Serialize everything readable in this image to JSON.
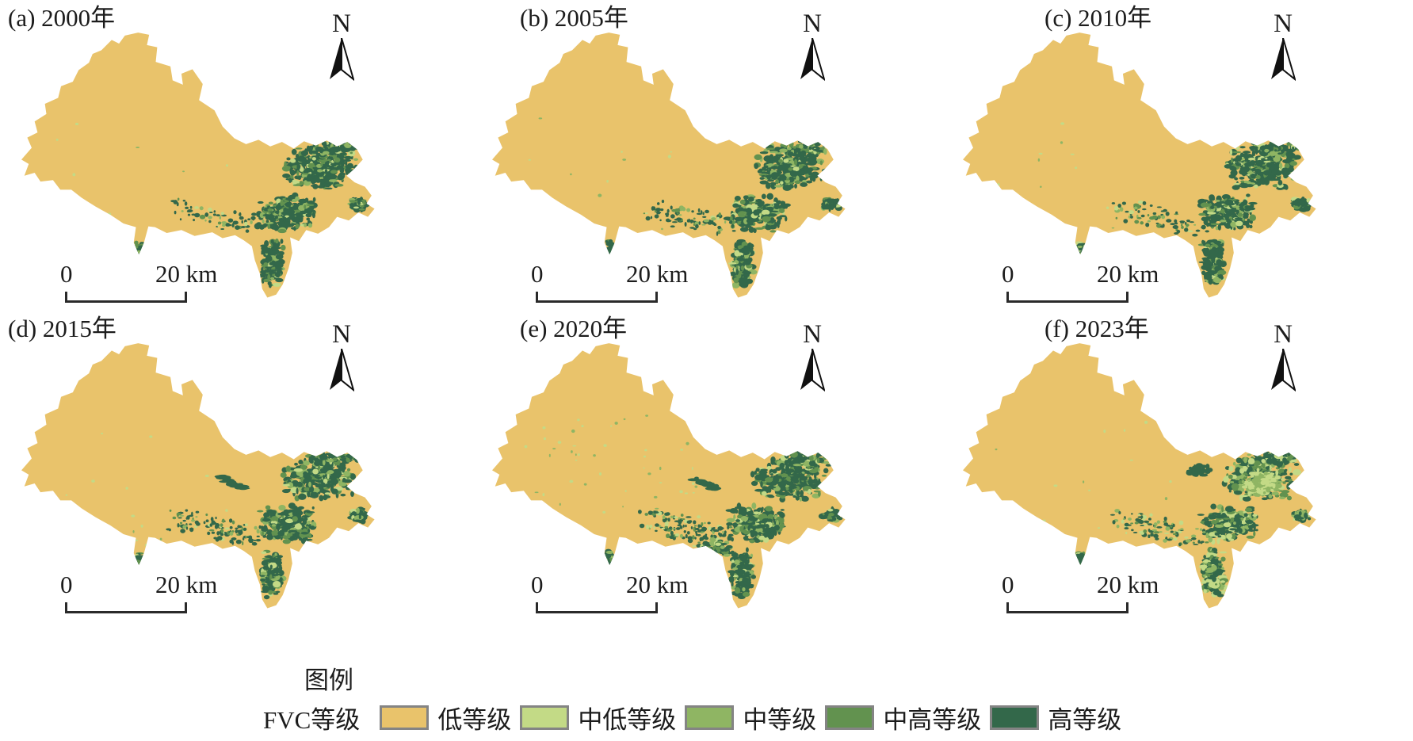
{
  "figure": {
    "description": "FVC grade maps of a county region for six years",
    "background": "#ffffff"
  },
  "panels": [
    {
      "id": "a",
      "title": "(a) 2000年",
      "year": "2000"
    },
    {
      "id": "b",
      "title": "(b) 2005年",
      "year": "2005"
    },
    {
      "id": "c",
      "title": "(c) 2010年",
      "year": "2010"
    },
    {
      "id": "d",
      "title": "(d) 2015年",
      "year": "2015"
    },
    {
      "id": "e",
      "title": "(e) 2020年",
      "year": "2020"
    },
    {
      "id": "f",
      "title": "(f) 2023年",
      "year": "2023"
    }
  ],
  "north_label": "N",
  "scale_bar": {
    "zero": "0",
    "end": "20 km"
  },
  "legend": {
    "header": "图例",
    "series_label": "FVC等级",
    "classes": [
      {
        "label": "低等级",
        "color": "#E9C36B"
      },
      {
        "label": "中低等级",
        "color": "#C3DA86"
      },
      {
        "label": "中等级",
        "color": "#8FB563"
      },
      {
        "label": "中高等级",
        "color": "#62924F"
      },
      {
        "label": "高等级",
        "color": "#33684A"
      }
    ]
  }
}
